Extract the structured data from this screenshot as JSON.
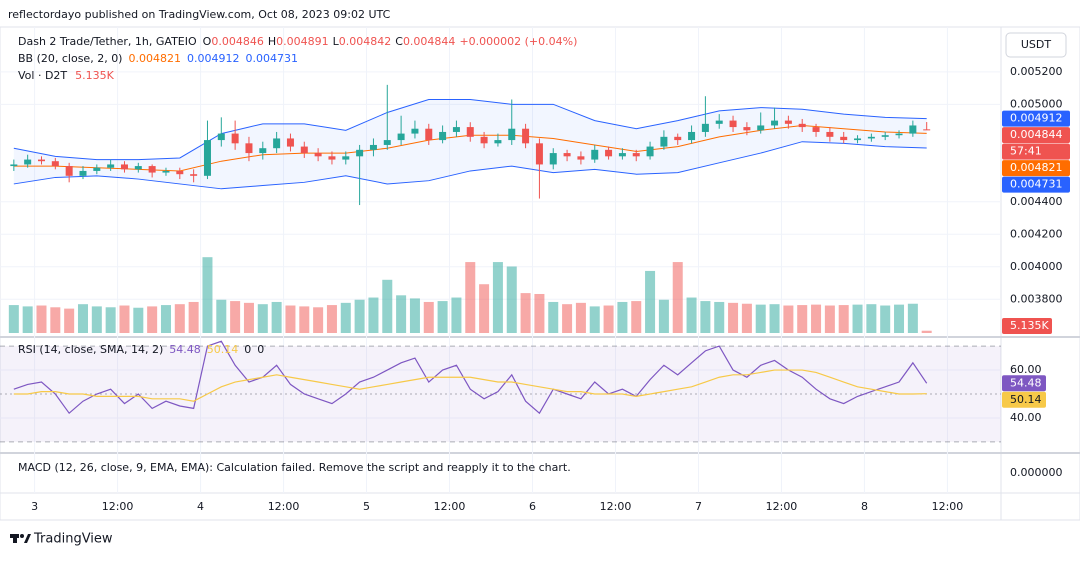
{
  "header": {
    "published": "reflectordayo published on TradingView.com, Oct 08, 2023 09:02 UTC"
  },
  "footer": {
    "brand": "TradingView"
  },
  "chart_data": [
    {
      "type": "candlestick",
      "symbol": "Dash 2 Trade/Tether, 1h, GATEIO",
      "ohlc_labels": [
        "O",
        "H",
        "L",
        "C"
      ],
      "change_label": "+0.000002 (+0.04%)",
      "currency": "USDT",
      "countdown": "57:41",
      "up_color": "#26a69a",
      "down_color": "#ef5350",
      "open": [
        0.00462,
        0.00463,
        0.00466,
        0.00465,
        0.00462,
        0.00456,
        0.00459,
        0.00461,
        0.00463,
        0.0046,
        0.00462,
        0.00458,
        0.00459,
        0.00457,
        0.00456,
        0.00478,
        0.00482,
        0.00476,
        0.0047,
        0.00473,
        0.00479,
        0.00474,
        0.0047,
        0.00468,
        0.00466,
        0.00468,
        0.00472,
        0.00475,
        0.00478,
        0.00482,
        0.00485,
        0.00478,
        0.00483,
        0.00486,
        0.0048,
        0.00476,
        0.00478,
        0.00485,
        0.00476,
        0.00463,
        0.0047,
        0.00468,
        0.00466,
        0.00472,
        0.00468,
        0.0047,
        0.00468,
        0.00474,
        0.0048,
        0.00478,
        0.00483,
        0.00488,
        0.0049,
        0.00486,
        0.00484,
        0.00487,
        0.0049,
        0.00488,
        0.00486,
        0.00483,
        0.0048,
        0.00478,
        0.00479,
        0.0048,
        0.00481,
        0.00482,
        0.004846
      ],
      "high": [
        0.00466,
        0.00469,
        0.00468,
        0.00467,
        0.00464,
        0.00462,
        0.00463,
        0.00466,
        0.00465,
        0.00464,
        0.00463,
        0.00461,
        0.00461,
        0.0046,
        0.0049,
        0.00492,
        0.0049,
        0.0048,
        0.00477,
        0.00483,
        0.00482,
        0.00477,
        0.00473,
        0.00471,
        0.00471,
        0.00475,
        0.00479,
        0.00512,
        0.00493,
        0.0049,
        0.00488,
        0.00487,
        0.0049,
        0.00489,
        0.00483,
        0.00482,
        0.00503,
        0.00488,
        0.00479,
        0.00473,
        0.00472,
        0.00471,
        0.00475,
        0.00474,
        0.00473,
        0.00472,
        0.00477,
        0.00484,
        0.00482,
        0.00487,
        0.00505,
        0.00494,
        0.00493,
        0.00489,
        0.00495,
        0.00498,
        0.00493,
        0.00491,
        0.00488,
        0.00486,
        0.00483,
        0.00481,
        0.00482,
        0.00483,
        0.00484,
        0.0049,
        0.004891
      ],
      "low": [
        0.00459,
        0.00461,
        0.00463,
        0.0046,
        0.00452,
        0.00454,
        0.00457,
        0.00459,
        0.00458,
        0.00458,
        0.00455,
        0.00456,
        0.00454,
        0.00452,
        0.00454,
        0.00474,
        0.00472,
        0.00465,
        0.00466,
        0.0047,
        0.00471,
        0.00467,
        0.00465,
        0.00463,
        0.00463,
        0.00438,
        0.00468,
        0.00472,
        0.00475,
        0.00479,
        0.00475,
        0.00476,
        0.0048,
        0.00477,
        0.00473,
        0.00474,
        0.00475,
        0.00473,
        0.00442,
        0.0046,
        0.00465,
        0.00463,
        0.00464,
        0.00466,
        0.00466,
        0.00465,
        0.00466,
        0.00472,
        0.00475,
        0.00476,
        0.0048,
        0.00485,
        0.00483,
        0.00481,
        0.00482,
        0.00485,
        0.00485,
        0.00483,
        0.0048,
        0.00477,
        0.00476,
        0.00476,
        0.00477,
        0.00478,
        0.00479,
        0.0048,
        0.004842
      ],
      "close": [
        0.00463,
        0.00466,
        0.00465,
        0.00462,
        0.00456,
        0.00459,
        0.00461,
        0.00463,
        0.0046,
        0.00462,
        0.00458,
        0.00459,
        0.00457,
        0.00456,
        0.00478,
        0.00482,
        0.00476,
        0.0047,
        0.00473,
        0.00479,
        0.00474,
        0.0047,
        0.00468,
        0.00466,
        0.00468,
        0.00472,
        0.00475,
        0.00478,
        0.00482,
        0.00485,
        0.00478,
        0.00483,
        0.00486,
        0.0048,
        0.00476,
        0.00478,
        0.00485,
        0.00476,
        0.00463,
        0.0047,
        0.00468,
        0.00466,
        0.00472,
        0.00468,
        0.0047,
        0.00468,
        0.00474,
        0.0048,
        0.00478,
        0.00483,
        0.00488,
        0.0049,
        0.00486,
        0.00484,
        0.00487,
        0.0049,
        0.00488,
        0.00486,
        0.00483,
        0.0048,
        0.00478,
        0.00479,
        0.0048,
        0.00481,
        0.00482,
        0.00487,
        0.004844
      ],
      "xlim": [
        -1,
        71.3
      ],
      "xticks": [
        {
          "value": 1.5,
          "label": "3"
        },
        {
          "value": 7.5,
          "label": "12:00"
        },
        {
          "value": 13.5,
          "label": "4"
        },
        {
          "value": 19.5,
          "label": "12:00"
        },
        {
          "value": 25.5,
          "label": "5"
        },
        {
          "value": 31.5,
          "label": "12:00"
        },
        {
          "value": 37.5,
          "label": "6"
        },
        {
          "value": 43.5,
          "label": "12:00"
        },
        {
          "value": 49.5,
          "label": "7"
        },
        {
          "value": 55.5,
          "label": "12:00"
        },
        {
          "value": 61.5,
          "label": "8"
        },
        {
          "value": 67.5,
          "label": "12:00"
        }
      ],
      "ylim": [
        0.00358,
        0.00547
      ],
      "yticks": [
        {
          "value": 0.0052,
          "label": "0.005200"
        },
        {
          "value": 0.005,
          "label": "0.005000"
        },
        {
          "value": 0.0044,
          "label": "0.004400"
        },
        {
          "value": 0.0042,
          "label": "0.004200"
        },
        {
          "value": 0.004,
          "label": "0.004000"
        },
        {
          "value": 0.0038,
          "label": "0.003800"
        }
      ],
      "grid": true,
      "bollinger": {
        "name": "BB (20, close, 2, 0)",
        "x": [
          0,
          3,
          6,
          9,
          12,
          15,
          18,
          21,
          24,
          27,
          30,
          33,
          36,
          39,
          42,
          45,
          48,
          51,
          54,
          57,
          60,
          63,
          66
        ],
        "fill": "#2962ff",
        "series": [
          {
            "color": "#2962ff",
            "values": [
              0.00473,
              0.00468,
              0.00466,
              0.00466,
              0.00467,
              0.00482,
              0.00488,
              0.00488,
              0.00484,
              0.00495,
              0.00503,
              0.00503,
              0.005,
              0.005,
              0.0049,
              0.00485,
              0.0049,
              0.00496,
              0.00498,
              0.00497,
              0.00494,
              0.00492,
              0.004912
            ]
          },
          {
            "color": "#ff6d00",
            "values": [
              0.00462,
              0.00462,
              0.00461,
              0.0046,
              0.00459,
              0.00465,
              0.00469,
              0.0047,
              0.0047,
              0.00473,
              0.00478,
              0.00481,
              0.00481,
              0.00479,
              0.00475,
              0.00471,
              0.00474,
              0.0048,
              0.00484,
              0.00487,
              0.00485,
              0.00483,
              0.004821
            ]
          },
          {
            "color": "#2962ff",
            "values": [
              0.00451,
              0.00455,
              0.00456,
              0.00454,
              0.00451,
              0.00448,
              0.0045,
              0.00452,
              0.00456,
              0.00451,
              0.00453,
              0.00459,
              0.00462,
              0.00458,
              0.0046,
              0.00457,
              0.00458,
              0.00464,
              0.0047,
              0.00477,
              0.00476,
              0.00474,
              0.004731
            ]
          }
        ]
      },
      "volume": {
        "name": "Vol · D2T",
        "values": [
          63,
          60,
          62,
          58,
          55,
          65,
          60,
          58,
          62,
          57,
          60,
          63,
          65,
          70,
          171,
          75,
          72,
          68,
          65,
          70,
          62,
          60,
          58,
          63,
          68,
          75,
          80,
          120,
          85,
          78,
          70,
          72,
          80,
          160,
          110,
          160,
          150,
          90,
          88,
          70,
          65,
          68,
          60,
          62,
          70,
          72,
          140,
          75,
          160,
          80,
          72,
          70,
          68,
          66,
          64,
          65,
          62,
          63,
          64,
          62,
          63,
          64,
          65,
          62,
          64,
          66,
          5.135
        ],
        "last_value_label": "5.135K",
        "vlim": [
          0,
          300
        ]
      }
    },
    {
      "type": "line",
      "title": "RSI (14, close, SMA, 14, 2)",
      "legend_extras": [
        "0",
        "0"
      ],
      "series": [
        {
          "color": "#7e57c2",
          "values": [
            52,
            54,
            55,
            50,
            42,
            47,
            50,
            52,
            46,
            50,
            44,
            47,
            45,
            44,
            70,
            72,
            62,
            55,
            57,
            62,
            54,
            50,
            48,
            46,
            50,
            55,
            57,
            60,
            63,
            65,
            55,
            60,
            62,
            52,
            48,
            51,
            58,
            47,
            42,
            52,
            50,
            48,
            55,
            50,
            52,
            49,
            56,
            62,
            58,
            63,
            68,
            70,
            60,
            57,
            62,
            64,
            60,
            57,
            52,
            48,
            46,
            49,
            51,
            53,
            55,
            63,
            54.48
          ]
        },
        {
          "color": "#f7c948",
          "values": [
            50,
            50,
            51,
            51,
            50,
            50,
            49,
            49,
            49,
            49,
            48,
            48,
            48,
            47,
            50,
            53,
            55,
            56,
            57,
            58,
            57,
            56,
            55,
            54,
            53,
            52,
            53,
            54,
            55,
            56,
            57,
            57,
            57,
            57,
            56,
            55,
            55,
            54,
            53,
            52,
            51,
            51,
            50,
            50,
            50,
            49,
            50,
            51,
            52,
            53,
            55,
            57,
            58,
            58,
            59,
            60,
            60,
            60,
            59,
            57,
            55,
            53,
            52,
            51,
            50,
            50,
            50.14
          ]
        }
      ],
      "ylim": [
        25.8,
        71.7
      ],
      "yticks": [
        {
          "value": 60,
          "label": "60.00"
        },
        {
          "value": 40,
          "label": "40.00"
        }
      ],
      "band_lines": [
        70,
        50,
        30
      ]
    },
    {
      "type": "message",
      "text": "MACD (12, 26, close, 9, EMA, EMA): Calculation failed. Remove the script and reapply it to the chart.",
      "ylim": [
        -1,
        1
      ],
      "yticks": [
        {
          "value": 0,
          "label": "0.000000"
        }
      ]
    }
  ]
}
